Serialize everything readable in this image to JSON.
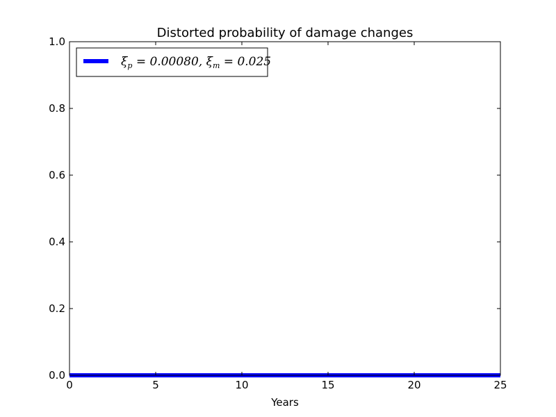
{
  "chart_data": {
    "type": "line",
    "title": "Distorted probability of damage changes",
    "xlabel": "Years",
    "ylabel": "",
    "xlim": [
      0,
      25
    ],
    "ylim": [
      0,
      1
    ],
    "xticks": [
      "0",
      "5",
      "10",
      "15",
      "20",
      "25"
    ],
    "yticks": [
      "0.0",
      "0.2",
      "0.4",
      "0.6",
      "0.8",
      "1.0"
    ],
    "grid": false,
    "legend_position": "top-left",
    "series": [
      {
        "name": "ξp = 0.00080, ξm = 0.025",
        "color": "#0000ff",
        "x": [
          0,
          5,
          10,
          15,
          20,
          25
        ],
        "y": [
          0,
          0,
          0,
          0,
          0,
          0
        ]
      }
    ]
  }
}
